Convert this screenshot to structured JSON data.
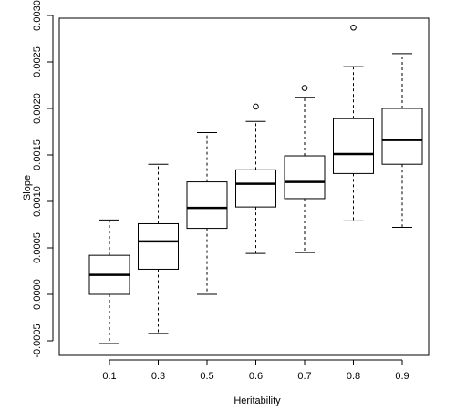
{
  "chart_data": {
    "type": "boxplot",
    "title": "",
    "xlabel": "Heritability",
    "ylabel": "Slope",
    "ylim": [
      -0.0006,
      0.003
    ],
    "y_ticks": [
      -0.0005,
      0.0,
      0.0005,
      0.001,
      0.0015,
      0.002,
      0.0025,
      0.003
    ],
    "y_tick_labels": [
      "-0.0005",
      "0.0000",
      "0.0005",
      "0.0010",
      "0.0015",
      "0.0020",
      "0.0025",
      "0.0030"
    ],
    "categories": [
      "0.1",
      "0.3",
      "0.5",
      "0.6",
      "0.7",
      "0.8",
      "0.9"
    ],
    "grid": false,
    "legend": "none",
    "boxes": [
      {
        "category": "0.1",
        "whisker_low": -0.00053,
        "q1": 0.0,
        "median": 0.00021,
        "q3": 0.00042,
        "whisker_high": 0.0008,
        "outliers": []
      },
      {
        "category": "0.3",
        "whisker_low": -0.00042,
        "q1": 0.00027,
        "median": 0.00057,
        "q3": 0.00076,
        "whisker_high": 0.0014,
        "outliers": []
      },
      {
        "category": "0.5",
        "whisker_low": 0.0,
        "q1": 0.00071,
        "median": 0.00093,
        "q3": 0.00121,
        "whisker_high": 0.00174,
        "outliers": []
      },
      {
        "category": "0.6",
        "whisker_low": 0.00044,
        "q1": 0.00094,
        "median": 0.00119,
        "q3": 0.00134,
        "whisker_high": 0.00186,
        "outliers": [
          0.00202
        ]
      },
      {
        "category": "0.7",
        "whisker_low": 0.00045,
        "q1": 0.00103,
        "median": 0.00121,
        "q3": 0.00149,
        "whisker_high": 0.00212,
        "outliers": [
          0.00222
        ]
      },
      {
        "category": "0.8",
        "whisker_low": 0.00079,
        "q1": 0.0013,
        "median": 0.00151,
        "q3": 0.00189,
        "whisker_high": 0.00245,
        "outliers": [
          0.00287
        ]
      },
      {
        "category": "0.9",
        "whisker_low": 0.00072,
        "q1": 0.0014,
        "median": 0.00166,
        "q3": 0.002,
        "whisker_high": 0.00259,
        "outliers": []
      }
    ],
    "colors": {
      "box_stroke": "#000000",
      "median": "#000000",
      "background": "#ffffff"
    }
  }
}
